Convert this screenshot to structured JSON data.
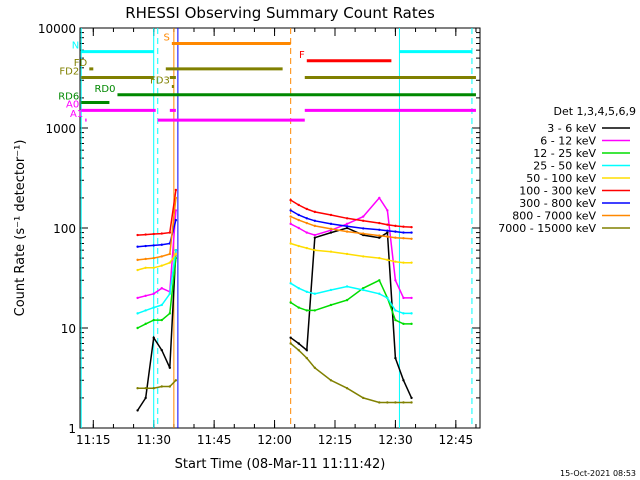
{
  "chart_data": {
    "type": "line",
    "title": "RHESSI Observing Summary Count Rates",
    "xlabel": "Start Time (08-Mar-11 11:11:42)",
    "ylabel": "Count Rate (s⁻¹ detector⁻¹)",
    "y_scale": "log",
    "ylim": [
      1,
      10000
    ],
    "xlim": [
      "11:11:42",
      "12:51:00"
    ],
    "x_ticks": [
      "11:15",
      "11:30",
      "11:45",
      "12:00",
      "12:15",
      "12:30",
      "12:45"
    ],
    "y_ticks": [
      "1",
      "10",
      "100",
      "1000",
      "10000"
    ],
    "legend_title": "Det 1,3,4,5,6,9",
    "legend_position": "right",
    "series": [
      {
        "name": "3 - 6 keV",
        "color": "#000000",
        "x": [
          "11:26:00",
          "11:28:00",
          "11:30:00",
          "11:32:00",
          "11:34:00",
          "11:35:30",
          "12:04:00",
          "12:06:00",
          "12:08:00",
          "12:10:00",
          "12:14:00",
          "12:18:00",
          "12:22:00",
          "12:26:00",
          "12:28:00",
          "12:30:00",
          "12:32:00",
          "12:34:00"
        ],
        "values": [
          1.5,
          2,
          8,
          6,
          4,
          60,
          8,
          7,
          6,
          80,
          90,
          100,
          85,
          80,
          90,
          5,
          3,
          2
        ]
      },
      {
        "name": "6 - 12 keV",
        "color": "#ff00ff",
        "x": [
          "11:26:00",
          "11:28:00",
          "11:30:00",
          "11:32:00",
          "11:34:00",
          "11:35:30",
          "12:04:00",
          "12:06:00",
          "12:08:00",
          "12:10:00",
          "12:14:00",
          "12:18:00",
          "12:22:00",
          "12:26:00",
          "12:28:00",
          "12:30:00",
          "12:32:00",
          "12:34:00"
        ],
        "values": [
          20,
          21,
          22,
          25,
          23,
          150,
          110,
          100,
          90,
          85,
          95,
          110,
          130,
          200,
          150,
          30,
          20,
          20
        ]
      },
      {
        "name": "12 - 25 keV",
        "color": "#00dd00",
        "x": [
          "11:26:00",
          "11:28:00",
          "11:30:00",
          "11:32:00",
          "11:34:00",
          "11:35:30",
          "12:04:00",
          "12:06:00",
          "12:08:00",
          "12:10:00",
          "12:14:00",
          "12:18:00",
          "12:22:00",
          "12:26:00",
          "12:28:00",
          "12:30:00",
          "12:32:00",
          "12:34:00"
        ],
        "values": [
          10,
          11,
          12,
          12,
          14,
          50,
          18,
          16,
          15,
          15,
          17,
          19,
          25,
          30,
          20,
          12,
          11,
          11
        ]
      },
      {
        "name": "25 - 50 keV",
        "color": "#00ffff",
        "x": [
          "11:26:00",
          "11:28:00",
          "11:30:00",
          "11:32:00",
          "11:34:00",
          "11:35:30",
          "12:04:00",
          "12:06:00",
          "12:08:00",
          "12:10:00",
          "12:14:00",
          "12:18:00",
          "12:22:00",
          "12:26:00",
          "12:28:00",
          "12:30:00",
          "12:32:00",
          "12:34:00"
        ],
        "values": [
          14,
          15,
          16,
          17,
          22,
          60,
          28,
          25,
          23,
          22,
          24,
          26,
          24,
          22,
          20,
          15,
          14,
          14
        ]
      },
      {
        "name": "50 - 100 keV",
        "color": "#ffdd00",
        "x": [
          "11:26:00",
          "11:28:00",
          "11:30:00",
          "11:32:00",
          "11:34:00",
          "11:35:30",
          "12:04:00",
          "12:06:00",
          "12:08:00",
          "12:10:00",
          "12:14:00",
          "12:18:00",
          "12:22:00",
          "12:26:00",
          "12:28:00",
          "12:30:00",
          "12:32:00",
          "12:34:00"
        ],
        "values": [
          38,
          40,
          40,
          42,
          45,
          55,
          70,
          66,
          63,
          60,
          58,
          55,
          52,
          50,
          48,
          46,
          45,
          45
        ]
      },
      {
        "name": "100 - 300 keV",
        "color": "#ff0000",
        "x": [
          "11:26:00",
          "11:28:00",
          "11:30:00",
          "11:32:00",
          "11:34:00",
          "11:35:30",
          "12:04:00",
          "12:06:00",
          "12:08:00",
          "12:10:00",
          "12:14:00",
          "12:18:00",
          "12:22:00",
          "12:26:00",
          "12:28:00",
          "12:30:00",
          "12:32:00",
          "12:34:00"
        ],
        "values": [
          85,
          86,
          87,
          88,
          90,
          240,
          190,
          170,
          155,
          145,
          135,
          125,
          118,
          112,
          108,
          105,
          103,
          102
        ]
      },
      {
        "name": "300 - 800 keV",
        "color": "#0000ff",
        "x": [
          "11:26:00",
          "11:28:00",
          "11:30:00",
          "11:32:00",
          "11:34:00",
          "11:35:30",
          "12:04:00",
          "12:06:00",
          "12:08:00",
          "12:10:00",
          "12:14:00",
          "12:18:00",
          "12:22:00",
          "12:26:00",
          "12:28:00",
          "12:30:00",
          "12:32:00",
          "12:34:00"
        ],
        "values": [
          65,
          66,
          67,
          68,
          70,
          120,
          150,
          135,
          125,
          118,
          110,
          104,
          99,
          96,
          94,
          92,
          90,
          90
        ]
      },
      {
        "name": "800 - 7000 keV",
        "color": "#ff8800",
        "x": [
          "11:26:00",
          "11:28:00",
          "11:30:00",
          "11:32:00",
          "11:34:00",
          "11:35:30",
          "12:04:00",
          "12:06:00",
          "12:08:00",
          "12:10:00",
          "12:14:00",
          "12:18:00",
          "12:22:00",
          "12:26:00",
          "12:28:00",
          "12:30:00",
          "12:32:00",
          "12:34:00"
        ],
        "values": [
          48,
          49,
          50,
          52,
          55,
          200,
          130,
          120,
          112,
          105,
          98,
          92,
          88,
          84,
          82,
          80,
          79,
          78
        ]
      },
      {
        "name": "7000 - 15000 keV",
        "color": "#808000",
        "x": [
          "11:26:00",
          "11:28:00",
          "11:30:00",
          "11:32:00",
          "11:34:00",
          "11:35:30",
          "12:04:00",
          "12:06:00",
          "12:08:00",
          "12:10:00",
          "12:14:00",
          "12:18:00",
          "12:22:00",
          "12:26:00",
          "12:28:00",
          "12:30:00",
          "12:32:00",
          "12:34:00"
        ],
        "values": [
          2.5,
          2.5,
          2.5,
          2.6,
          2.6,
          3,
          7,
          6,
          5,
          4,
          3,
          2.5,
          2,
          1.8,
          1.8,
          1.8,
          1.8,
          1.8
        ]
      }
    ],
    "flag_bars": [
      {
        "label": "S",
        "color": "#ff8800",
        "value": 7000,
        "segments": [
          [
            "11:34:30",
            "12:04:00"
          ]
        ]
      },
      {
        "label": "N",
        "color": "#00ffff",
        "value": 5800,
        "segments": [
          [
            "11:12:00",
            "11:30:00"
          ],
          [
            "12:31:00",
            "12:49:00"
          ]
        ]
      },
      {
        "label": "F",
        "color": "#ff0000",
        "value": 4700,
        "segments": [
          [
            "12:08:00",
            "12:29:00"
          ]
        ]
      },
      {
        "label": "FD",
        "color": "#808000",
        "value": 3900,
        "segments": [
          [
            "11:14:00",
            "11:15:00"
          ],
          [
            "11:33:00",
            "12:02:00"
          ]
        ]
      },
      {
        "label": "FD2",
        "color": "#808000",
        "value": 3200,
        "segments": [
          [
            "11:12:00",
            "11:30:00"
          ],
          [
            "11:34:00",
            "11:35:30"
          ],
          [
            "12:07:30",
            "12:50:00"
          ]
        ]
      },
      {
        "label": "FD3",
        "color": "#808000",
        "value": 2600,
        "segments": [
          [
            "11:34:30",
            "11:35:00"
          ]
        ]
      },
      {
        "label": "RD0",
        "color": "#008800",
        "value": 2150,
        "segments": [
          [
            "11:21:00",
            "12:50:00"
          ]
        ]
      },
      {
        "label": "RD6",
        "color": "#008800",
        "value": 1800,
        "segments": [
          [
            "11:12:00",
            "11:19:00"
          ]
        ]
      },
      {
        "label": "A0",
        "color": "#ff00ff",
        "value": 1500,
        "segments": [
          [
            "11:12:00",
            "11:30:30"
          ],
          [
            "11:34:00",
            "11:35:30"
          ],
          [
            "12:07:30",
            "12:50:00"
          ]
        ]
      },
      {
        "label": "A1",
        "color": "#ff00ff",
        "value": 1200,
        "segments": [
          [
            "11:13:00",
            "11:13:20"
          ],
          [
            "11:31:00",
            "12:07:30"
          ]
        ]
      }
    ],
    "vlines": [
      {
        "x": "11:12:00",
        "color": "#00ffff",
        "style": "solid"
      },
      {
        "x": "11:30:00",
        "color": "#00ffff",
        "style": "solid"
      },
      {
        "x": "11:31:00",
        "color": "#00ffff",
        "style": "dashed"
      },
      {
        "x": "11:35:00",
        "color": "#ff8800",
        "style": "solid"
      },
      {
        "x": "11:36:00",
        "color": "#0000ff",
        "style": "solid"
      },
      {
        "x": "12:04:00",
        "color": "#ff8800",
        "style": "dashed"
      },
      {
        "x": "12:31:00",
        "color": "#00ffff",
        "style": "solid"
      },
      {
        "x": "12:49:00",
        "color": "#00ffff",
        "style": "dashed"
      }
    ],
    "footer_date": "15-Oct-2021 08:53"
  }
}
